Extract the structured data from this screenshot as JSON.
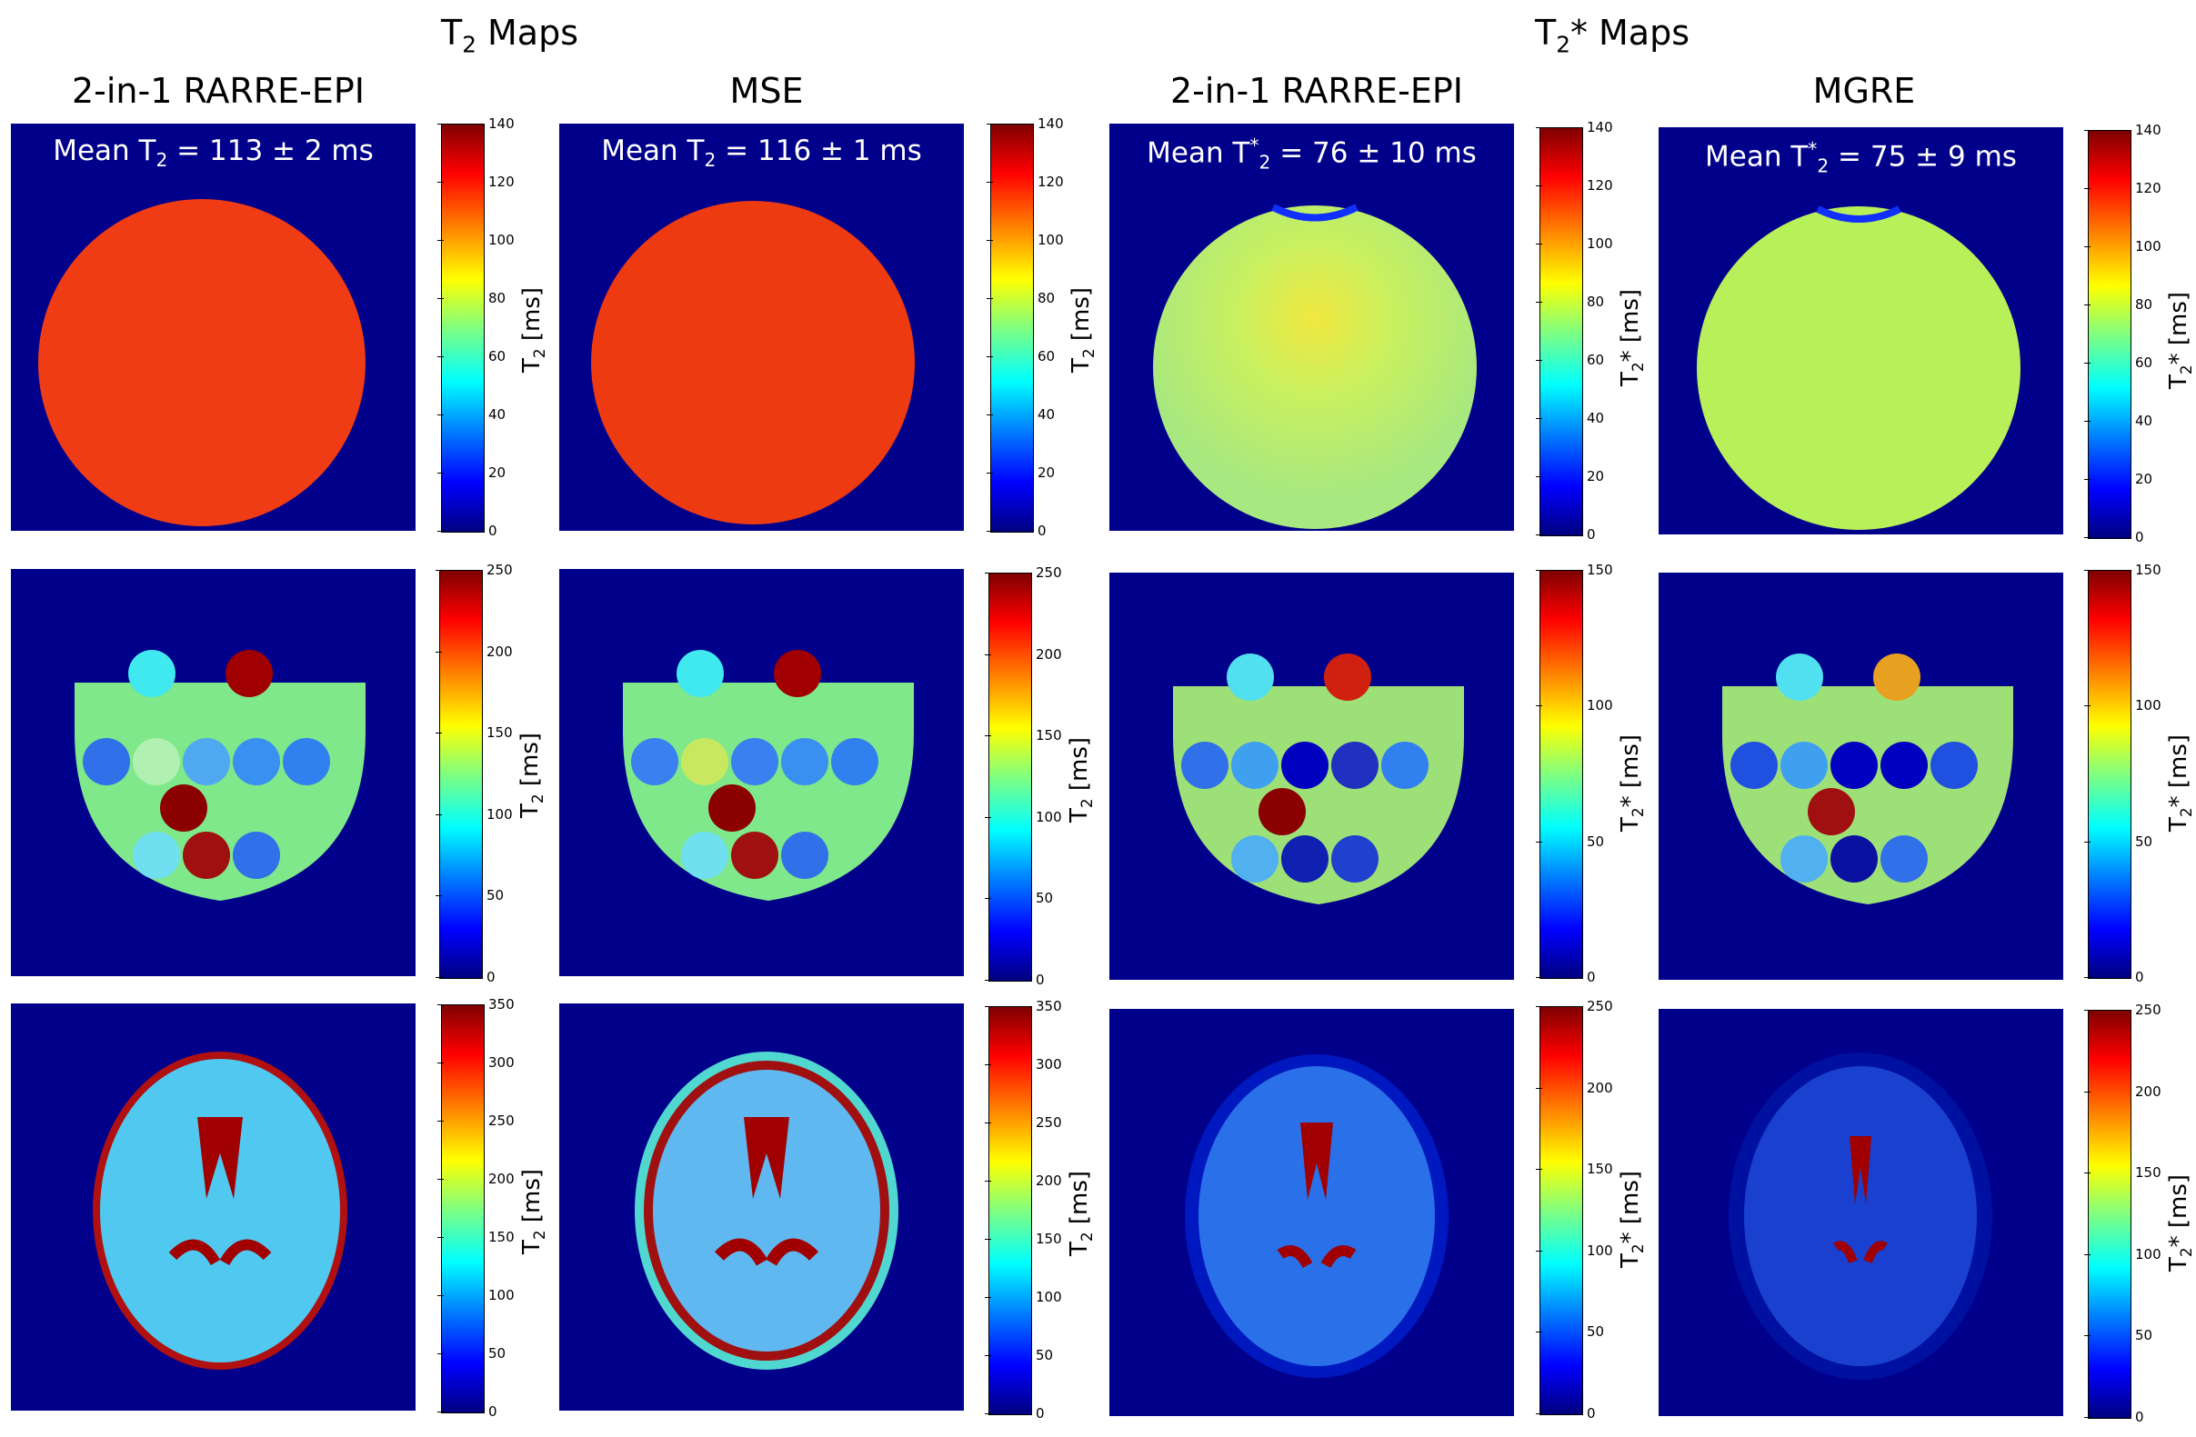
{
  "group_titles": {
    "t2": "T2 Maps",
    "t2star": "T2* Maps"
  },
  "columns": [
    {
      "title": "2-in-1 RARRE-EPI",
      "mean": "Mean T2 = 113 ± 2 ms",
      "unit": "T2 [ms]"
    },
    {
      "title": "MSE",
      "mean": "Mean T2 = 116 ± 1 ms",
      "unit": "T2 [ms]"
    },
    {
      "title": "2-in-1 RARRE-EPI",
      "mean": "Mean T*2 = 76 ± 10 ms",
      "unit": "T2* [ms]"
    },
    {
      "title": "MGRE",
      "mean": "Mean T*2 = 75 ± 9 ms",
      "unit": "T2* [ms]"
    }
  ],
  "colorbar_ticks": {
    "row1": [
      "0",
      "20",
      "40",
      "60",
      "80",
      "100",
      "120",
      "140"
    ],
    "row2_t2": [
      "0",
      "50",
      "100",
      "150",
      "200",
      "250"
    ],
    "row2_t2star": [
      "0",
      "50",
      "100",
      "150"
    ],
    "row3_t2": [
      "0",
      "50",
      "100",
      "150",
      "200",
      "250",
      "300",
      "350"
    ],
    "row3_t2star": [
      "0",
      "50",
      "100",
      "150",
      "200",
      "250"
    ]
  },
  "colors": {
    "background_map": "#00008b",
    "phantom_t2": "#f03c14",
    "phantom_t2star": "#b8f05a",
    "gel_green": "#7ee88a"
  }
}
